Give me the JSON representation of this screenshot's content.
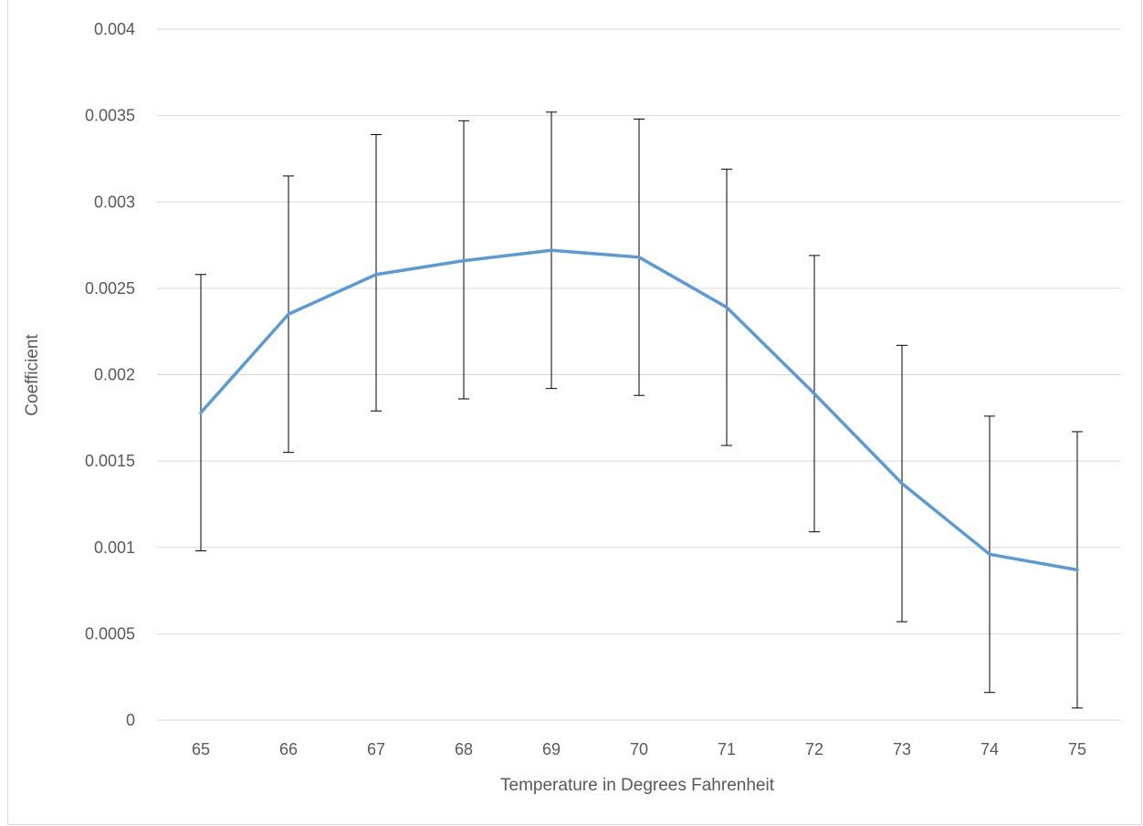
{
  "chart_data": {
    "type": "line",
    "title": "",
    "xlabel": "Temperature in Degrees Fahrenheit",
    "ylabel": "Coefficient",
    "x": [
      65,
      66,
      67,
      68,
      69,
      70,
      71,
      72,
      73,
      74,
      75
    ],
    "y_ticks": [
      "0",
      "0.0005",
      "0.001",
      "0.0015",
      "0.002",
      "0.0025",
      "0.003",
      "0.0035",
      "0.004"
    ],
    "ylim": [
      0,
      0.004
    ],
    "grid": true,
    "legend": "none",
    "series": [
      {
        "values": [
          0.00178,
          0.00235,
          0.00258,
          0.00266,
          0.00272,
          0.00268,
          0.00239,
          0.00189,
          0.00137,
          0.00096,
          0.00087
        ],
        "error_low": [
          0.00098,
          0.00155,
          0.00179,
          0.00186,
          0.00192,
          0.00188,
          0.00159,
          0.00109,
          0.00057,
          0.00016,
          7e-05
        ],
        "error_high": [
          0.00258,
          0.00315,
          0.00339,
          0.00347,
          0.00352,
          0.00348,
          0.00319,
          0.00269,
          0.00217,
          0.00176,
          0.00167
        ],
        "color": "#5b9bd5"
      }
    ],
    "error_bar_color": "#000000",
    "grid_color": "#d9d9d9"
  }
}
